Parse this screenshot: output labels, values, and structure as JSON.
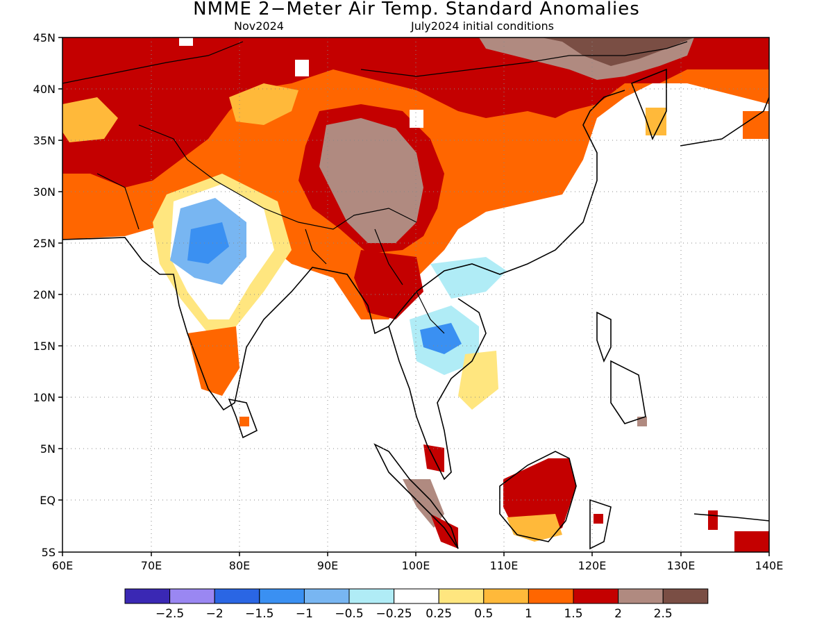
{
  "title": "NMME 2−Meter Air Temp. Standard Anomalies",
  "subtitle_left": "Nov2024",
  "subtitle_right": "July2024 initial conditions",
  "lat_labels": [
    "45N",
    "40N",
    "35N",
    "30N",
    "25N",
    "20N",
    "15N",
    "10N",
    "5N",
    "EQ",
    "5S"
  ],
  "lon_labels": [
    "60E",
    "70E",
    "80E",
    "90E",
    "100E",
    "110E",
    "120E",
    "130E",
    "140E"
  ],
  "colorbar": {
    "colors": [
      "#3a28b4",
      "#9a87f2",
      "#2a66e4",
      "#3a90f2",
      "#78b6f2",
      "#b0ecf6",
      "#ffffff",
      "#ffe67f",
      "#ffb93a",
      "#ff6600",
      "#c40000",
      "#b08a80",
      "#7a4e44"
    ],
    "labels": [
      "−2.5",
      "−2",
      "−1.5",
      "−1",
      "−0.5",
      "−0.25",
      "0.25",
      "0.5",
      "1",
      "1.5",
      "2",
      "2.5"
    ]
  }
}
